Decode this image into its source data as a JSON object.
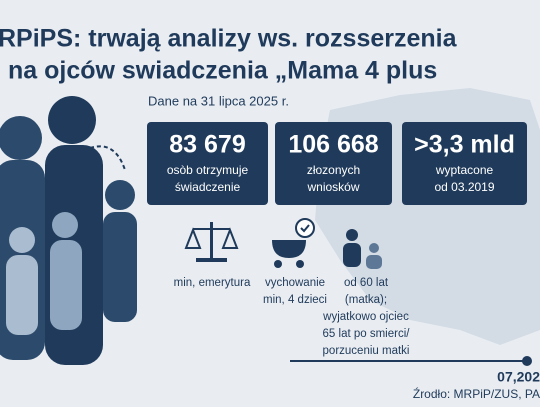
{
  "header": {
    "title_lines": [
      "RPiPS: trwają analizy ws. rozsserzenia",
      "na ojców swiadczenia „Mama 4 plus"
    ],
    "date": "Dane na 31 lipca 2025 r."
  },
  "stats": [
    {
      "value": "83 679",
      "label_lines": [
        "osòb otrzymuje",
        "świadczenie"
      ]
    },
    {
      "value": "106 668",
      "label_lines": [
        "złozonych",
        "wniosków"
      ]
    },
    {
      "value": ">3,3 mld",
      "label_lines": [
        "wyptacone",
        "od 03.2019"
      ]
    }
  ],
  "criteria": [
    {
      "lines": [
        "min, emerytura"
      ]
    },
    {
      "lines": [
        "vychowanie",
        "min, 4 dzieci"
      ]
    },
    {
      "lines": [
        "od 60 lat",
        "(matka);",
        "wyjatkowo ojciec",
        "65 lat po smierci/",
        "porzuceniu matki"
      ]
    }
  ],
  "footer": {
    "date": "07,202",
    "source": "Źrodło: MRPiP/ZUS, PA"
  }
}
